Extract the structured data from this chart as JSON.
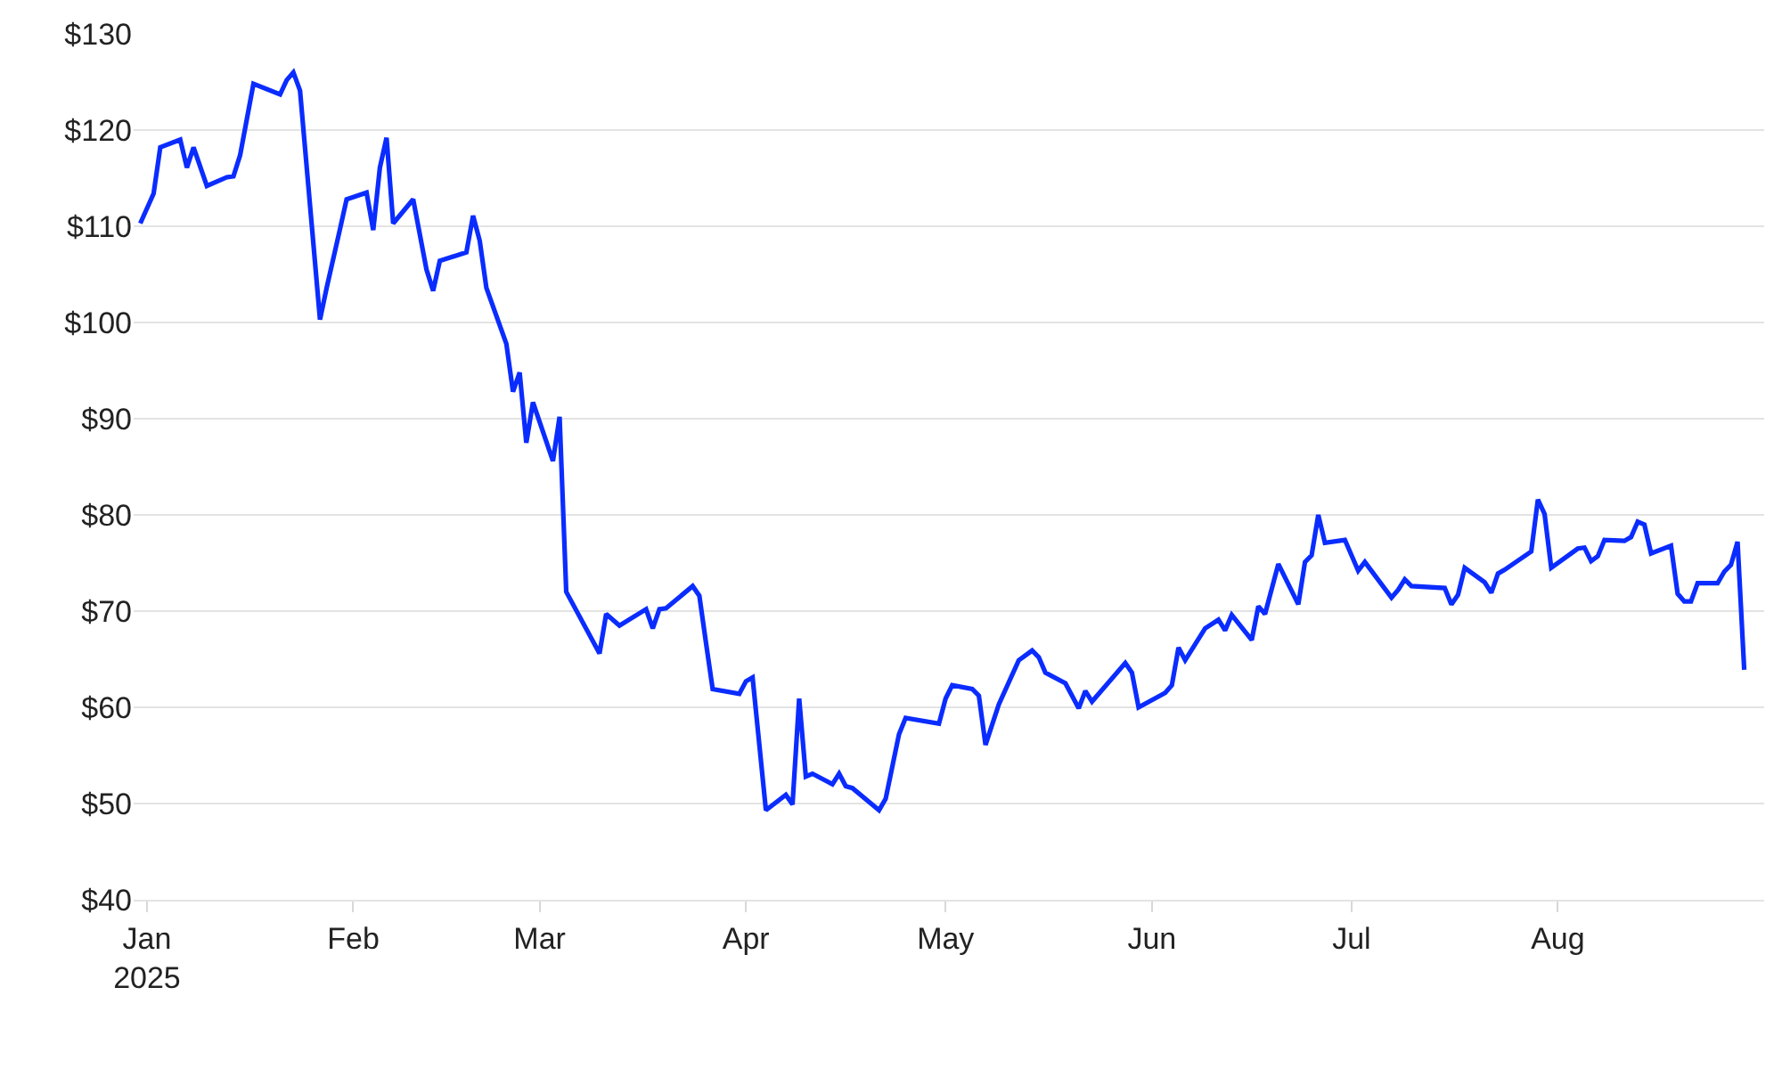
{
  "chart_data": {
    "type": "line",
    "x": [
      "2024-12-31",
      "2025-01-02",
      "2025-01-03",
      "2025-01-06",
      "2025-01-07",
      "2025-01-08",
      "2025-01-10",
      "2025-01-13",
      "2025-01-14",
      "2025-01-15",
      "2025-01-17",
      "2025-01-21",
      "2025-01-22",
      "2025-01-23",
      "2025-01-24",
      "2025-01-27",
      "2025-01-28",
      "2025-01-30",
      "2025-01-31",
      "2025-02-03",
      "2025-02-04",
      "2025-02-05",
      "2025-02-06",
      "2025-02-07",
      "2025-02-10",
      "2025-02-12",
      "2025-02-13",
      "2025-02-14",
      "2025-02-18",
      "2025-02-19",
      "2025-02-20",
      "2025-02-21",
      "2025-02-24",
      "2025-02-25",
      "2025-02-26",
      "2025-02-27",
      "2025-02-28",
      "2025-03-03",
      "2025-03-04",
      "2025-03-05",
      "2025-03-10",
      "2025-03-11",
      "2025-03-13",
      "2025-03-17",
      "2025-03-18",
      "2025-03-19",
      "2025-03-20",
      "2025-03-24",
      "2025-03-25",
      "2025-03-26",
      "2025-03-27",
      "2025-03-31",
      "2025-04-01",
      "2025-04-02",
      "2025-04-04",
      "2025-04-07",
      "2025-04-08",
      "2025-04-09",
      "2025-04-10",
      "2025-04-11",
      "2025-04-14",
      "2025-04-15",
      "2025-04-16",
      "2025-04-17",
      "2025-04-21",
      "2025-04-22",
      "2025-04-24",
      "2025-04-25",
      "2025-04-30",
      "2025-05-01",
      "2025-05-02",
      "2025-05-05",
      "2025-05-06",
      "2025-05-07",
      "2025-05-09",
      "2025-05-12",
      "2025-05-14",
      "2025-05-15",
      "2025-05-16",
      "2025-05-19",
      "2025-05-21",
      "2025-05-22",
      "2025-05-23",
      "2025-05-28",
      "2025-05-29",
      "2025-05-30",
      "2025-06-03",
      "2025-06-04",
      "2025-06-05",
      "2025-06-06",
      "2025-06-09",
      "2025-06-11",
      "2025-06-12",
      "2025-06-13",
      "2025-06-16",
      "2025-06-17",
      "2025-06-18",
      "2025-06-20",
      "2025-06-23",
      "2025-06-24",
      "2025-06-25",
      "2025-06-26",
      "2025-06-27",
      "2025-06-30",
      "2025-07-02",
      "2025-07-03",
      "2025-07-07",
      "2025-07-08",
      "2025-07-09",
      "2025-07-10",
      "2025-07-15",
      "2025-07-16",
      "2025-07-17",
      "2025-07-18",
      "2025-07-21",
      "2025-07-22",
      "2025-07-23",
      "2025-07-24",
      "2025-07-28",
      "2025-07-29",
      "2025-07-30",
      "2025-07-31",
      "2025-08-04",
      "2025-08-05",
      "2025-08-06",
      "2025-08-07",
      "2025-08-08",
      "2025-08-11",
      "2025-08-12",
      "2025-08-13",
      "2025-08-14",
      "2025-08-15",
      "2025-08-18",
      "2025-08-19",
      "2025-08-20",
      "2025-08-21",
      "2025-08-22",
      "2025-08-25",
      "2025-08-26",
      "2025-08-27",
      "2025-08-28",
      "2025-08-29"
    ],
    "series": [
      {
        "color": "#0a2cff",
        "values": [
          110.3,
          113.4,
          118.2,
          119.0,
          116.1,
          118.2,
          114.2,
          115.1,
          115.2,
          117.4,
          124.8,
          123.7,
          125.2,
          126.0,
          124.1,
          100.3,
          103.6,
          109.7,
          112.8,
          113.5,
          109.6,
          116.1,
          119.2,
          110.3,
          112.8,
          105.5,
          103.3,
          106.4,
          107.3,
          111.1,
          108.5,
          103.6,
          97.8,
          92.8,
          94.8,
          87.5,
          91.7,
          85.6,
          90.2,
          72.0,
          65.6,
          69.7,
          68.5,
          70.2,
          68.2,
          70.2,
          70.3,
          72.6,
          71.6,
          66.7,
          61.9,
          61.4,
          62.7,
          63.1,
          49.3,
          50.9,
          49.9,
          60.9,
          52.8,
          53.1,
          52.0,
          53.1,
          51.8,
          51.6,
          49.3,
          50.5,
          57.2,
          58.9,
          58.3,
          60.9,
          62.3,
          61.9,
          61.2,
          56.1,
          60.3,
          64.9,
          65.9,
          65.2,
          63.6,
          62.5,
          59.9,
          61.7,
          60.6,
          64.6,
          63.6,
          60.0,
          61.5,
          62.3,
          66.2,
          64.9,
          68.2,
          69.1,
          68.0,
          69.6,
          67.0,
          70.5,
          69.7,
          74.9,
          70.7,
          75.1,
          75.8,
          80.0,
          77.1,
          77.4,
          74.2,
          75.1,
          71.4,
          72.2,
          73.3,
          72.6,
          72.4,
          70.7,
          71.7,
          74.5,
          73.0,
          71.9,
          73.9,
          74.3,
          76.2,
          81.6,
          80.1,
          74.5,
          76.5,
          76.6,
          75.2,
          75.7,
          77.4,
          77.3,
          77.7,
          79.3,
          79.0,
          76.0,
          76.8,
          71.8,
          71.0,
          71.0,
          72.9,
          72.9,
          74.1,
          74.8,
          77.2,
          63.9
        ]
      }
    ],
    "xlim": [
      "2024-12-30",
      "2025-09-01"
    ],
    "xticks": [
      {
        "value": "2025-01-01",
        "label": "Jan\n2025"
      },
      {
        "value": "2025-02-01",
        "label": "Feb"
      },
      {
        "value": "2025-03-01",
        "label": "Mar"
      },
      {
        "value": "2025-04-01",
        "label": "Apr"
      },
      {
        "value": "2025-05-01",
        "label": "May"
      },
      {
        "value": "2025-06-01",
        "label": "Jun"
      },
      {
        "value": "2025-07-01",
        "label": "Jul"
      },
      {
        "value": "2025-08-01",
        "label": "Aug"
      }
    ],
    "ylim": [
      40,
      130
    ],
    "yticks": [
      {
        "value": 40,
        "label": "$40"
      },
      {
        "value": 50,
        "label": "$50"
      },
      {
        "value": 60,
        "label": "$60"
      },
      {
        "value": 70,
        "label": "$70"
      },
      {
        "value": 80,
        "label": "$80"
      },
      {
        "value": 90,
        "label": "$90"
      },
      {
        "value": 100,
        "label": "$100"
      },
      {
        "value": 110,
        "label": "$110"
      },
      {
        "value": 120,
        "label": "$120"
      },
      {
        "value": 130,
        "label": "$130"
      }
    ],
    "grid": "y",
    "marker": "none",
    "line_style": "solid"
  }
}
